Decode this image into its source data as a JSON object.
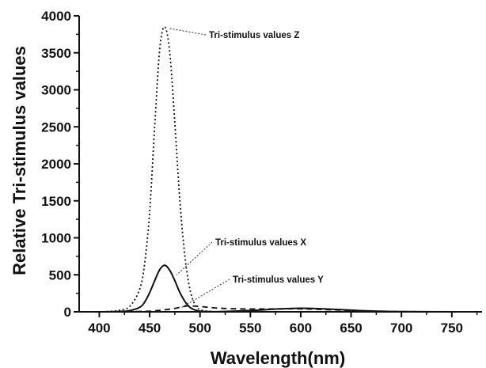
{
  "chart_data": {
    "type": "line",
    "title": "",
    "xlabel": "Wavelength(nm)",
    "ylabel": "Relative Tri-stimulus values",
    "xlim": [
      380,
      780
    ],
    "ylim": [
      0,
      4000
    ],
    "x_ticks": [
      400,
      450,
      500,
      550,
      600,
      650,
      700,
      750
    ],
    "y_ticks": [
      0,
      500,
      1000,
      1500,
      2000,
      2500,
      3000,
      3500,
      4000
    ],
    "grid": false,
    "legend": "none",
    "series": [
      {
        "key": "Z",
        "style": "dotted",
        "color": "#111111",
        "x": [
          380,
          400,
          410,
          420,
          430,
          440,
          445,
          450,
          455,
          460,
          465,
          470,
          475,
          480,
          485,
          490,
          495,
          500,
          510,
          520,
          540,
          560,
          600,
          650,
          700,
          750,
          780
        ],
        "y": [
          0,
          0,
          5,
          20,
          70,
          300,
          650,
          1350,
          2500,
          3550,
          3850,
          3500,
          2550,
          1500,
          750,
          300,
          100,
          30,
          5,
          0,
          0,
          0,
          0,
          0,
          0,
          0,
          0
        ]
      },
      {
        "key": "X",
        "style": "solid",
        "color": "#111111",
        "x": [
          380,
          400,
          420,
          430,
          440,
          445,
          450,
          455,
          460,
          465,
          470,
          475,
          480,
          485,
          490,
          495,
          500,
          510,
          520,
          540,
          560,
          580,
          600,
          620,
          640,
          660,
          680,
          700,
          750,
          780
        ],
        "y": [
          0,
          0,
          5,
          15,
          60,
          130,
          260,
          420,
          570,
          630,
          560,
          420,
          260,
          140,
          60,
          25,
          8,
          2,
          3,
          12,
          25,
          40,
          48,
          42,
          30,
          16,
          7,
          3,
          0,
          0
        ],
        "annotation": "Tri-stimulus values X"
      },
      {
        "key": "Y",
        "style": "dashed",
        "color": "#111111",
        "x": [
          380,
          400,
          420,
          440,
          450,
          460,
          470,
          475,
          480,
          485,
          490,
          500,
          510,
          520,
          540,
          560,
          580,
          600,
          620,
          640,
          660,
          680,
          700,
          750,
          780
        ],
        "y": [
          0,
          0,
          2,
          5,
          10,
          20,
          35,
          45,
          60,
          75,
          80,
          72,
          58,
          48,
          40,
          38,
          40,
          40,
          32,
          22,
          12,
          6,
          3,
          0,
          0
        ],
        "annotation": "Tri-stimulus values Y"
      }
    ],
    "annotations": [
      {
        "text": "Tri-stimulus values Z",
        "target_x": 465,
        "target_y": 3850
      },
      {
        "text": "Tri-stimulus values X",
        "target_x": 472,
        "target_y": 520
      },
      {
        "text": "Tri-stimulus values Y",
        "target_x": 477,
        "target_y": 80
      }
    ]
  }
}
